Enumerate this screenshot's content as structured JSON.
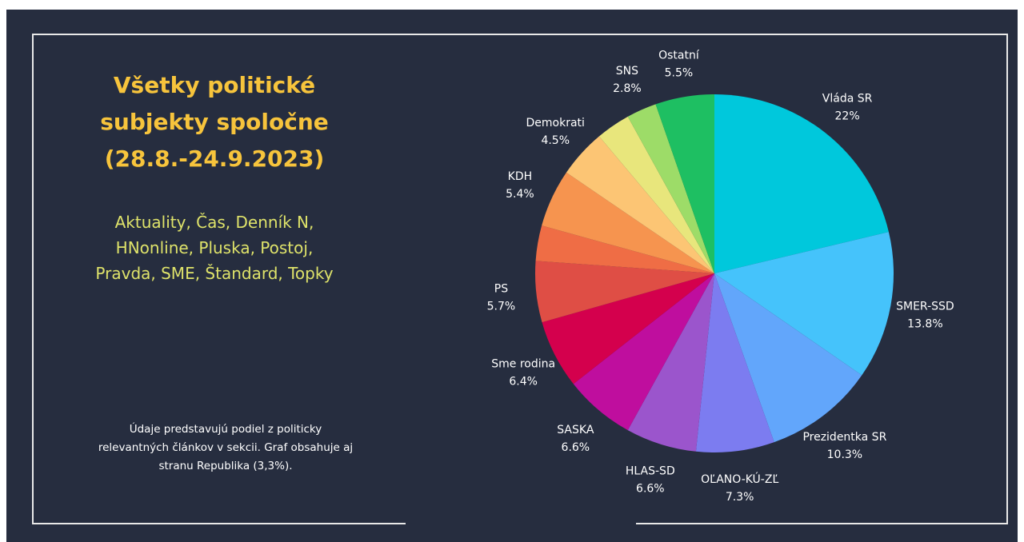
{
  "title_lines": [
    "Všetky politické",
    "subjekty spoločne",
    "(28.8.-24.9.2023)"
  ],
  "sources_lines": [
    "Aktuality, Čas, Denník N,",
    "HNonline, Pluska, Postoj,",
    "Pravda, SME, Štandard, Topky"
  ],
  "note_lines": [
    "Údaje predstavujú podiel z politicky",
    "relevantných článkov v sekcii. Graf obsahuje aj",
    "stranu Republika (3,3%)."
  ],
  "colors": {
    "background": "#262d3f",
    "title": "#f7c43c",
    "sources": "#dfe36a",
    "text": "#ffffff"
  },
  "chart_data": {
    "type": "pie",
    "slices": [
      {
        "label": "Vláda SR",
        "value": 22,
        "display": "22%",
        "color": "#00c8dc"
      },
      {
        "label": "SMER-SSD",
        "value": 13.8,
        "display": "13.8%",
        "color": "#45c3fb"
      },
      {
        "label": "Prezidentka SR",
        "value": 10.3,
        "display": "10.3%",
        "color": "#62a6fb"
      },
      {
        "label": "OĽANO-KÚ-ZĽ",
        "value": 7.3,
        "display": "7.3%",
        "color": "#7c7cf0"
      },
      {
        "label": "HLAS-SD",
        "value": 6.6,
        "display": "6.6%",
        "color": "#9b55cc"
      },
      {
        "label": "SASKA",
        "value": 6.6,
        "display": "6.6%",
        "color": "#bf0e9e"
      },
      {
        "label": "Sme rodina",
        "value": 6.4,
        "display": "6.4%",
        "color": "#d4004d"
      },
      {
        "label": "PS",
        "value": 5.7,
        "display": "5.7%",
        "color": "#df4e45"
      },
      {
        "label": "",
        "value": 3.3,
        "display": "",
        "color": "#ef6d45"
      },
      {
        "label": "KDH",
        "value": 5.4,
        "display": "5.4%",
        "color": "#f6944f"
      },
      {
        "label": "Demokrati",
        "value": 4.5,
        "display": "4.5%",
        "color": "#fcc574"
      },
      {
        "label": "",
        "value": 3.2,
        "display": "",
        "color": "#e8e67c"
      },
      {
        "label": "SNS",
        "value": 2.8,
        "display": "2.8%",
        "color": "#9ddc68"
      },
      {
        "label": "Ostatní",
        "value": 5.5,
        "display": "5.5%",
        "color": "#1ebf62"
      }
    ]
  }
}
